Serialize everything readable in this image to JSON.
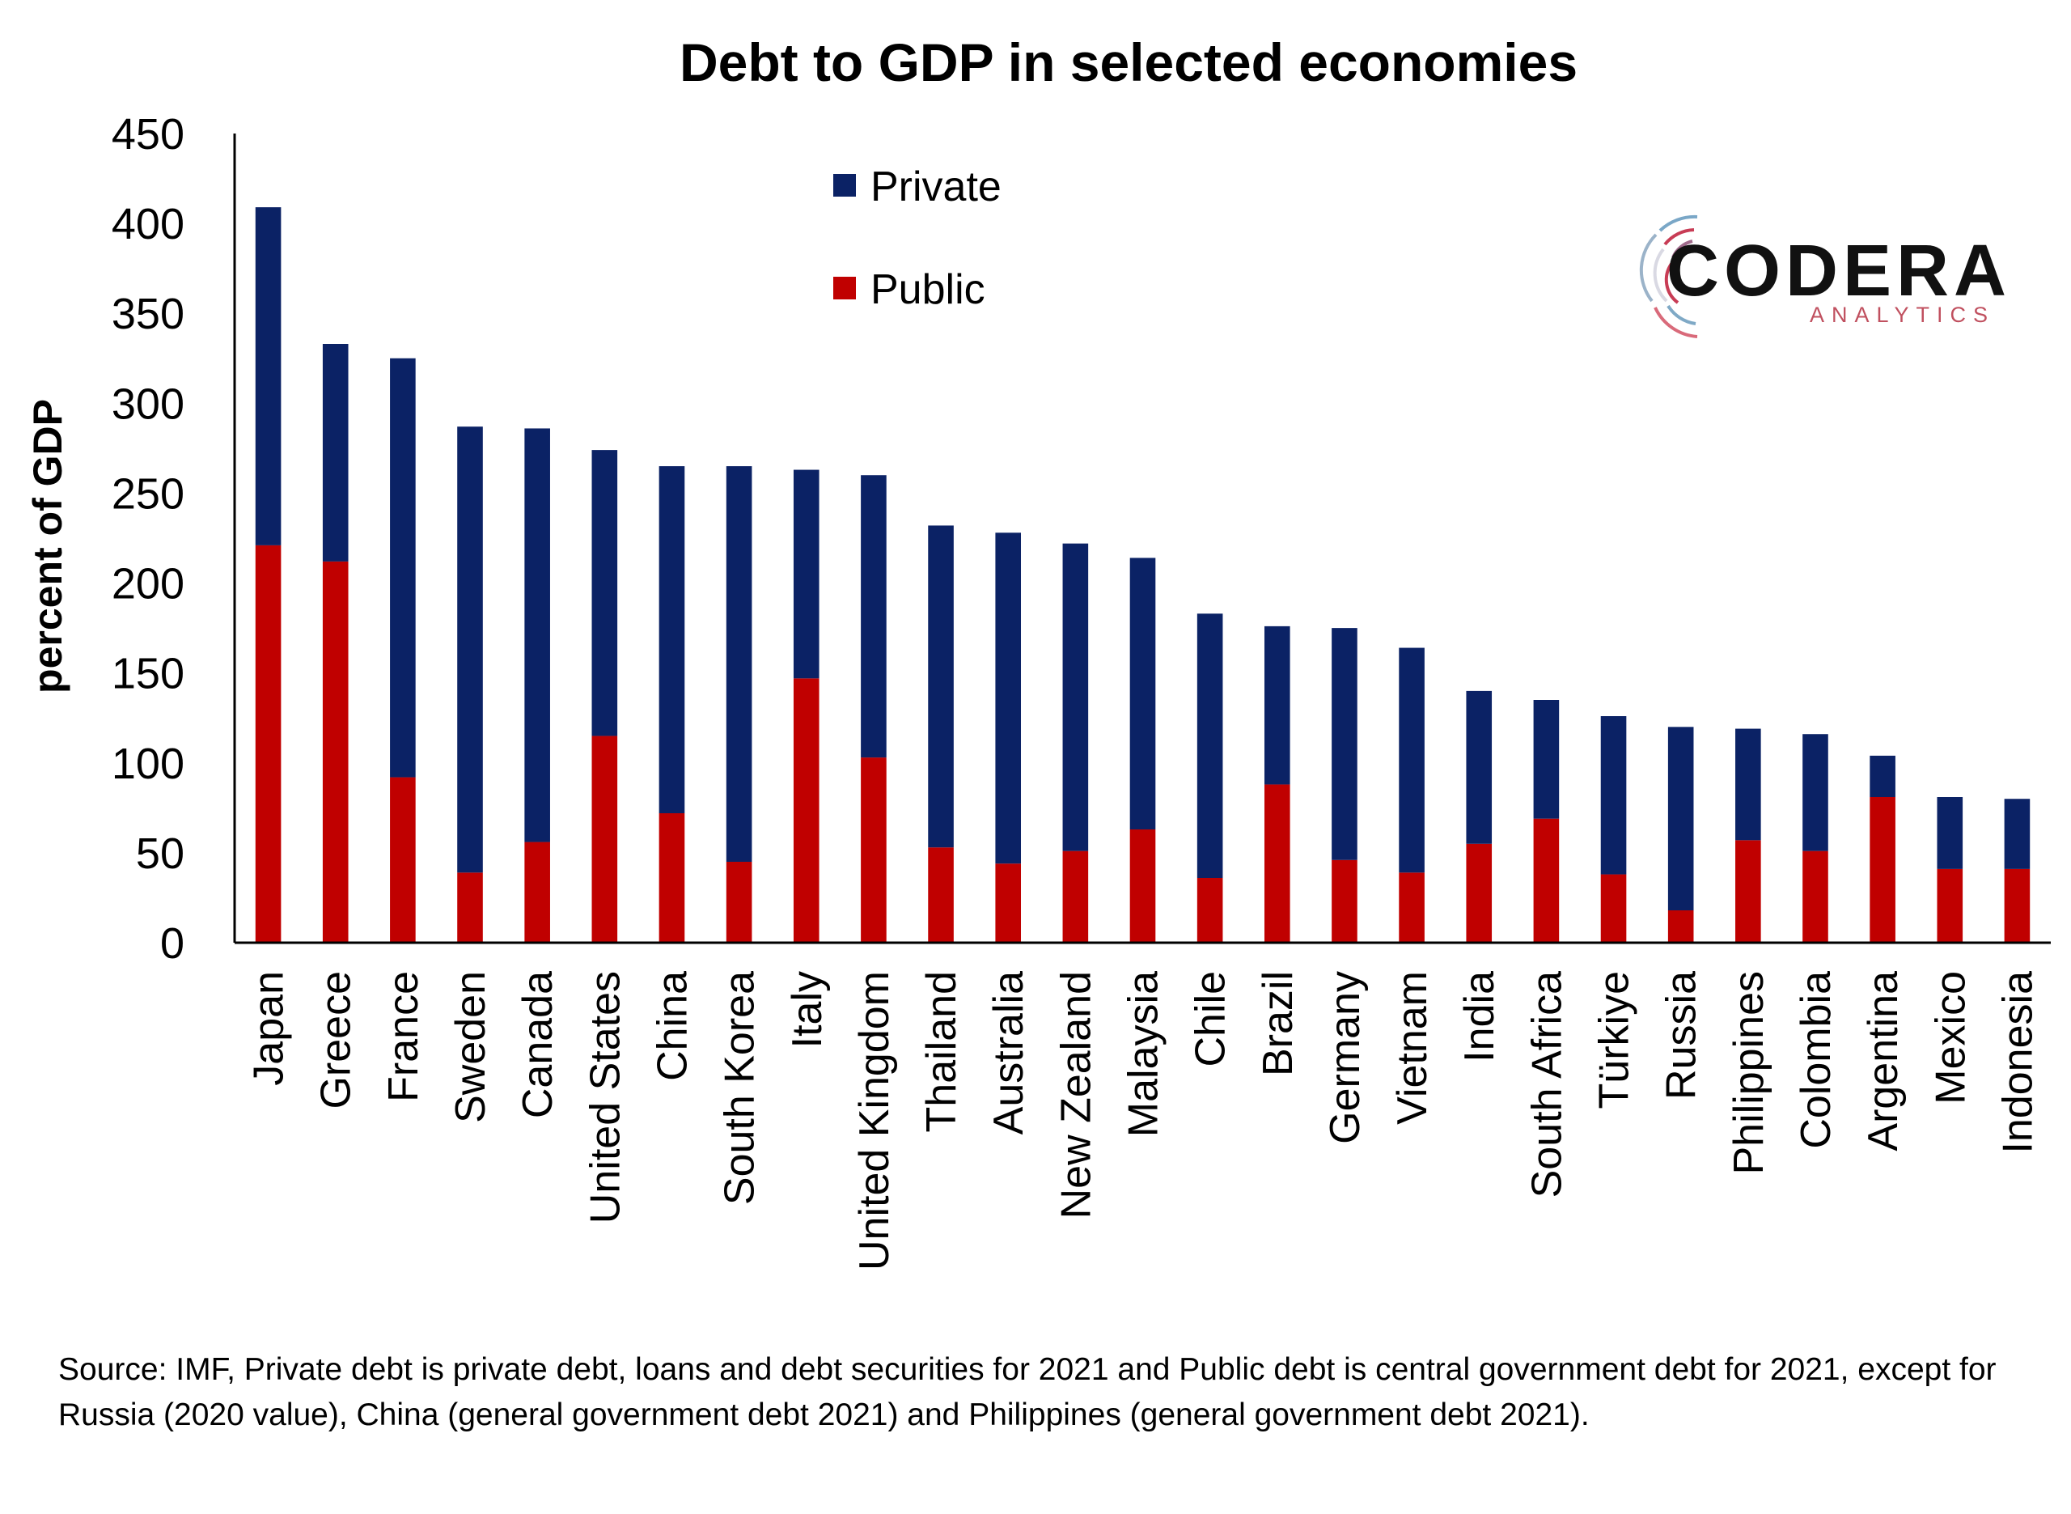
{
  "chart_data": {
    "type": "bar",
    "stacked": true,
    "title": "Debt to GDP in selected economies",
    "ylabel": "percent of GDP",
    "xlabel": "",
    "ylim": [
      0,
      450
    ],
    "yticks": [
      0,
      50,
      100,
      150,
      200,
      250,
      300,
      350,
      400,
      450
    ],
    "grid": false,
    "legend_position": "top-center",
    "categories": [
      "Japan",
      "Greece",
      "France",
      "Sweden",
      "Canada",
      "United States",
      "China",
      "South Korea",
      "Italy",
      "United Kingdom",
      "Thailand",
      "Australia",
      "New Zealand",
      "Malaysia",
      "Chile",
      "Brazil",
      "Germany",
      "Vietnam",
      "India",
      "South Africa",
      "Türkiye",
      "Russia",
      "Philippines",
      "Colombia",
      "Argentina",
      "Mexico",
      "Indonesia"
    ],
    "series": [
      {
        "name": "Public",
        "color": "#c00000",
        "values": [
          221,
          212,
          92,
          39,
          56,
          115,
          72,
          45,
          147,
          103,
          53,
          44,
          51,
          63,
          36,
          88,
          46,
          39,
          55,
          69,
          38,
          18,
          57,
          51,
          81,
          41,
          41
        ]
      },
      {
        "name": "Private",
        "color": "#0b2265",
        "values": [
          188,
          121,
          233,
          248,
          230,
          159,
          193,
          220,
          116,
          157,
          179,
          184,
          171,
          151,
          147,
          88,
          129,
          125,
          85,
          66,
          88,
          102,
          62,
          65,
          23,
          40,
          39
        ]
      }
    ]
  },
  "legend": {
    "private_label": "Private",
    "public_label": "Public"
  },
  "logo": {
    "name": "CODERA",
    "sub": "ANALYTICS"
  },
  "colors": {
    "private": "#0b2265",
    "public": "#c00000",
    "axis": "#000000"
  },
  "source_note": "Source: IMF, Private debt is private debt, loans and debt securities for 2021 and Public debt is central government debt for 2021, except for Russia (2020 value), China (general government debt 2021) and Philippines (general government debt 2021)."
}
